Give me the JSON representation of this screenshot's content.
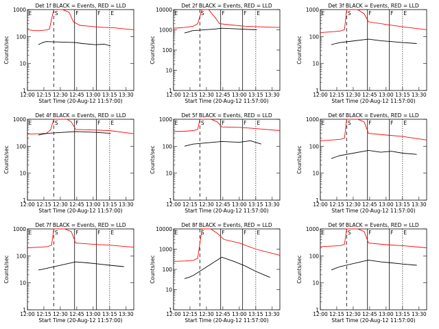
{
  "colors": {
    "events": "#000000",
    "lld": "#ff0000",
    "axes": "#000000"
  },
  "chart_data": [
    {
      "type": "line",
      "title": "Det 1f BLACK = Events, RED = LLD",
      "xlabel": "Start Time (20-Aug-12 11:57:00)",
      "ylabel": "Counts/sec",
      "yscale": "log",
      "ylim": [
        1,
        1000
      ],
      "yticks": [
        "1",
        "10",
        "100",
        "1000"
      ],
      "xlim": [
        "12:00",
        "13:37"
      ],
      "xticks": [
        "12:00",
        "12:15",
        "12:30",
        "12:45",
        "13:00",
        "13:15",
        "13:30"
      ],
      "markers": [
        {
          "label": "E",
          "time": "12:00"
        },
        {
          "label": "S",
          "time": "12:24"
        },
        {
          "label": "F",
          "time": "12:43"
        },
        {
          "label": "F",
          "time": "13:03"
        },
        {
          "label": "E",
          "time": "13:15"
        }
      ],
      "series": [
        {
          "x": [
            "12:00",
            "12:05",
            "12:10",
            "12:17",
            "12:20",
            "12:24",
            "12:32",
            "12:38",
            "12:42",
            "12:48",
            "13:02",
            "13:10",
            "13:20",
            "13:30",
            "13:37"
          ],
          "values": [
            180,
            170,
            165,
            175,
            190,
            1000,
            1000,
            800,
            350,
            260,
            230,
            220,
            210,
            190,
            180
          ]
        },
        {
          "x": [
            "12:10",
            "12:12",
            "12:14",
            "12:17",
            "12:44",
            "12:50",
            "13:02",
            "13:10",
            "13:16"
          ],
          "values": [
            50,
            55,
            60,
            65,
            60,
            55,
            50,
            52,
            45
          ]
        }
      ]
    },
    {
      "type": "line",
      "title": "Det 2f BLACK = Events, RED = LLD",
      "xlabel": "Start Time (20-Aug-12 11:57:00)",
      "ylabel": "Counts/sec",
      "yscale": "log",
      "ylim": [
        1,
        10000
      ],
      "yticks": [
        "1",
        "10",
        "100",
        "1000",
        "10000"
      ],
      "xlim": [
        "12:00",
        "13:37"
      ],
      "xticks": [
        "12:00",
        "12:15",
        "12:30",
        "12:45",
        "13:00",
        "13:15",
        "13:30"
      ],
      "markers": [
        {
          "label": "E",
          "time": "12:00"
        },
        {
          "label": "S",
          "time": "12:24"
        },
        {
          "label": "F",
          "time": "12:43"
        },
        {
          "label": "F",
          "time": "13:03"
        },
        {
          "label": "E",
          "time": "13:15"
        }
      ],
      "series": [
        {
          "x": [
            "12:00",
            "12:10",
            "12:18",
            "12:22",
            "12:26",
            "12:32",
            "12:38",
            "12:42",
            "12:50",
            "13:05",
            "13:20",
            "13:37"
          ],
          "values": [
            1200,
            1300,
            1500,
            2000,
            10000,
            10000,
            4000,
            2000,
            1800,
            1500,
            1400,
            1300
          ]
        },
        {
          "x": [
            "12:10",
            "12:14",
            "12:17",
            "12:38",
            "12:44",
            "13:00",
            "13:16"
          ],
          "values": [
            700,
            800,
            900,
            1100,
            1200,
            1100,
            1000
          ]
        }
      ]
    },
    {
      "type": "line",
      "title": "Det 3f BLACK = Events, RED = LLD",
      "xlabel": "Start Time (20-Aug-12 11:57:00)",
      "ylabel": "Counts/sec",
      "yscale": "log",
      "ylim": [
        1,
        1000
      ],
      "yticks": [
        "1",
        "10",
        "100",
        "1000"
      ],
      "xlim": [
        "12:00",
        "13:37"
      ],
      "xticks": [
        "12:00",
        "12:15",
        "12:30",
        "12:45",
        "13:00",
        "13:15",
        "13:30"
      ],
      "markers": [
        {
          "label": "E",
          "time": "12:00"
        },
        {
          "label": "S",
          "time": "12:24"
        },
        {
          "label": "F",
          "time": "12:43"
        },
        {
          "label": "F",
          "time": "13:03"
        },
        {
          "label": "E",
          "time": "13:15"
        }
      ],
      "series": [
        {
          "x": [
            "12:00",
            "12:10",
            "12:18",
            "12:22",
            "12:24",
            "12:34",
            "12:40",
            "12:44",
            "13:00",
            "13:15",
            "13:37"
          ],
          "values": [
            140,
            150,
            160,
            180,
            1000,
            1000,
            700,
            350,
            280,
            230,
            180
          ]
        },
        {
          "x": [
            "12:10",
            "12:14",
            "12:18",
            "12:44",
            "12:55",
            "13:05",
            "13:15",
            "13:28"
          ],
          "values": [
            50,
            55,
            60,
            80,
            70,
            65,
            60,
            55
          ]
        }
      ]
    },
    {
      "type": "line",
      "title": "Det 4f BLACK = Events, RED = LLD",
      "xlabel": "Start Time (20-Aug-12 11:57:00)",
      "ylabel": "Counts/sec",
      "yscale": "log",
      "ylim": [
        1,
        1000
      ],
      "yticks": [
        "1",
        "10",
        "100",
        "1000"
      ],
      "xlim": [
        "12:00",
        "13:37"
      ],
      "xticks": [
        "12:00",
        "12:15",
        "12:30",
        "12:45",
        "13:00",
        "13:15",
        "13:30"
      ],
      "markers": [
        {
          "label": "E",
          "time": "12:00"
        },
        {
          "label": "S",
          "time": "12:24"
        },
        {
          "label": "F",
          "time": "12:43"
        },
        {
          "label": "F",
          "time": "13:03"
        },
        {
          "label": "E",
          "time": "13:15"
        }
      ],
      "series": [
        {
          "x": [
            "12:00",
            "12:10",
            "12:17",
            "12:21",
            "12:24",
            "12:36",
            "12:40",
            "12:44",
            "13:00",
            "13:15",
            "13:37"
          ],
          "values": [
            280,
            290,
            300,
            400,
            1000,
            1000,
            800,
            420,
            400,
            380,
            290
          ]
        },
        {
          "x": [
            "12:10",
            "12:14",
            "12:18",
            "12:44",
            "13:00",
            "13:16"
          ],
          "values": [
            260,
            280,
            300,
            350,
            330,
            300
          ]
        }
      ]
    },
    {
      "type": "line",
      "title": "Det 5f BLACK = Events, RED = LLD",
      "xlabel": "Start Time (20-Aug-12 11:57:00)",
      "ylabel": "Counts/sec",
      "yscale": "log",
      "ylim": [
        1,
        1000
      ],
      "yticks": [
        "1",
        "10",
        "100",
        "1000"
      ],
      "xlim": [
        "12:00",
        "13:37"
      ],
      "xticks": [
        "12:00",
        "12:15",
        "12:30",
        "12:45",
        "13:00",
        "13:15",
        "13:30"
      ],
      "markers": [
        {
          "label": "E",
          "time": "12:00"
        },
        {
          "label": "S",
          "time": "12:24"
        },
        {
          "label": "F",
          "time": "12:43"
        },
        {
          "label": "F",
          "time": "13:03"
        },
        {
          "label": "E",
          "time": "13:15"
        }
      ],
      "series": [
        {
          "x": [
            "12:00",
            "12:10",
            "12:18",
            "12:22",
            "12:24",
            "12:34",
            "12:40",
            "12:44",
            "13:00",
            "13:15",
            "13:37"
          ],
          "values": [
            350,
            360,
            380,
            420,
            1000,
            1000,
            800,
            520,
            500,
            450,
            380
          ]
        },
        {
          "x": [
            "12:10",
            "12:14",
            "12:18",
            "12:44",
            "13:00",
            "13:10",
            "13:20"
          ],
          "values": [
            100,
            110,
            120,
            150,
            140,
            160,
            120
          ]
        }
      ]
    },
    {
      "type": "line",
      "title": "Det 6f BLACK = Events, RED = LLD",
      "xlabel": "Start Time (20-Aug-12 11:57:00)",
      "ylabel": "Counts/sec",
      "yscale": "log",
      "ylim": [
        1,
        1000
      ],
      "yticks": [
        "1",
        "10",
        "100",
        "1000"
      ],
      "xlim": [
        "12:00",
        "13:37"
      ],
      "xticks": [
        "12:00",
        "12:15",
        "12:30",
        "12:45",
        "13:00",
        "13:15",
        "13:30"
      ],
      "markers": [
        {
          "label": "E",
          "time": "12:00"
        },
        {
          "label": "S",
          "time": "12:24"
        },
        {
          "label": "F",
          "time": "12:43"
        },
        {
          "label": "F",
          "time": "13:03"
        },
        {
          "label": "E",
          "time": "13:15"
        }
      ],
      "series": [
        {
          "x": [
            "12:00",
            "12:10",
            "12:18",
            "12:22",
            "12:24",
            "12:34",
            "12:40",
            "12:44",
            "13:00",
            "13:15",
            "13:37"
          ],
          "values": [
            160,
            170,
            180,
            200,
            1000,
            1000,
            800,
            300,
            260,
            230,
            170
          ]
        },
        {
          "x": [
            "12:10",
            "12:14",
            "12:18",
            "12:44",
            "12:55",
            "13:05",
            "13:15",
            "13:28"
          ],
          "values": [
            35,
            40,
            45,
            70,
            60,
            65,
            55,
            50
          ]
        }
      ]
    },
    {
      "type": "line",
      "title": "Det 7f BLACK = Events, RED = LLD",
      "xlabel": "Start Time (20-Aug-12 11:57:00)",
      "ylabel": "Counts/sec",
      "yscale": "log",
      "ylim": [
        1,
        1000
      ],
      "yticks": [
        "1",
        "10",
        "100",
        "1000"
      ],
      "xlim": [
        "12:00",
        "13:37"
      ],
      "xticks": [
        "12:00",
        "12:15",
        "12:30",
        "12:45",
        "13:00",
        "13:15",
        "13:30"
      ],
      "markers": [
        {
          "label": "E",
          "time": "12:00"
        },
        {
          "label": "S",
          "time": "12:24"
        },
        {
          "label": "F",
          "time": "12:43"
        },
        {
          "label": "F",
          "time": "13:03"
        },
        {
          "label": "E",
          "time": "13:15"
        }
      ],
      "series": [
        {
          "x": [
            "12:00",
            "12:10",
            "12:18",
            "12:22",
            "12:24",
            "12:34",
            "12:40",
            "12:44",
            "13:00",
            "13:15",
            "13:37"
          ],
          "values": [
            200,
            210,
            220,
            250,
            1000,
            1000,
            800,
            300,
            270,
            250,
            210
          ]
        },
        {
          "x": [
            "12:10",
            "12:14",
            "12:18",
            "12:44",
            "12:55",
            "13:05",
            "13:15",
            "13:28"
          ],
          "values": [
            30,
            32,
            35,
            60,
            55,
            50,
            45,
            40
          ]
        }
      ]
    },
    {
      "type": "line",
      "title": "Det 8f BLACK = Events, RED = LLD",
      "xlabel": "Start Time (20-Aug-12 11:57:00)",
      "ylabel": "Counts/sec",
      "yscale": "log",
      "ylim": [
        1,
        10000
      ],
      "yticks": [
        "1",
        "10",
        "100",
        "1000",
        "10000"
      ],
      "xlim": [
        "12:00",
        "13:37"
      ],
      "xticks": [
        "12:00",
        "12:15",
        "12:30",
        "12:45",
        "13:00",
        "13:15",
        "13:30"
      ],
      "markers": [
        {
          "label": "E",
          "time": "12:00"
        },
        {
          "label": "S",
          "time": "12:24"
        },
        {
          "label": "F",
          "time": "12:43"
        },
        {
          "label": "F",
          "time": "13:03"
        },
        {
          "label": "E",
          "time": "13:15"
        }
      ],
      "series": [
        {
          "x": [
            "12:00",
            "12:10",
            "12:18",
            "12:22",
            "12:26",
            "12:34",
            "12:40",
            "12:46",
            "13:00",
            "13:15",
            "13:37"
          ],
          "values": [
            250,
            260,
            280,
            350,
            10000,
            10000,
            6000,
            3000,
            2000,
            1000,
            500
          ]
        },
        {
          "x": [
            "12:10",
            "12:14",
            "12:18",
            "12:44",
            "12:55",
            "13:05",
            "13:15",
            "13:28"
          ],
          "values": [
            35,
            40,
            50,
            400,
            250,
            150,
            80,
            40
          ]
        }
      ]
    },
    {
      "type": "line",
      "title": "Det 9f BLACK = Events, RED = LLD",
      "xlabel": "Start Time (20-Aug-12 11:57:00)",
      "ylabel": "Counts/sec",
      "yscale": "log",
      "ylim": [
        1,
        1000
      ],
      "yticks": [
        "1",
        "10",
        "100",
        "1000"
      ],
      "xlim": [
        "12:00",
        "13:37"
      ],
      "xticks": [
        "12:00",
        "12:15",
        "12:30",
        "12:45",
        "13:00",
        "13:15",
        "13:30"
      ],
      "markers": [
        {
          "label": "E",
          "time": "12:00"
        },
        {
          "label": "S",
          "time": "12:24"
        },
        {
          "label": "F",
          "time": "12:43"
        },
        {
          "label": "F",
          "time": "13:03"
        },
        {
          "label": "E",
          "time": "13:15"
        }
      ],
      "series": [
        {
          "x": [
            "12:00",
            "12:10",
            "12:18",
            "12:22",
            "12:24",
            "12:34",
            "12:40",
            "12:44",
            "13:00",
            "13:15",
            "13:37"
          ],
          "values": [
            220,
            230,
            240,
            270,
            1000,
            1000,
            800,
            300,
            260,
            240,
            200
          ]
        },
        {
          "x": [
            "12:10",
            "12:14",
            "12:18",
            "12:44",
            "12:55",
            "13:05",
            "13:15",
            "13:28"
          ],
          "values": [
            30,
            35,
            40,
            70,
            60,
            55,
            50,
            45
          ]
        }
      ]
    }
  ]
}
